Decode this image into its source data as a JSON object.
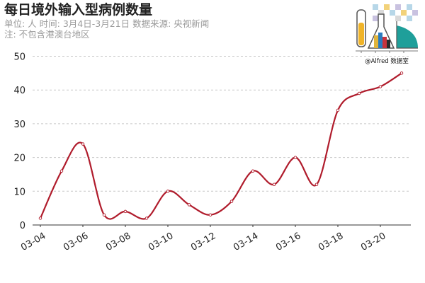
{
  "chart_data": {
    "type": "line",
    "title": "每日境外输入型病例数量",
    "subtitle_lines": [
      "单位: 人  时间: 3月4日-3月21日  数据来源: 央视新闻",
      "注: 不包含港澳台地区"
    ],
    "x": [
      "03-04",
      "03-05",
      "03-06",
      "03-07",
      "03-08",
      "03-09",
      "03-10",
      "03-11",
      "03-12",
      "03-13",
      "03-14",
      "03-15",
      "03-16",
      "03-17",
      "03-18",
      "03-19",
      "03-20",
      "03-21"
    ],
    "x_tick_labels": [
      "03-04",
      "03-06",
      "03-08",
      "03-10",
      "03-12",
      "03-14",
      "03-16",
      "03-18",
      "03-20"
    ],
    "series": [
      {
        "values": [
          2,
          16,
          24,
          3,
          4,
          2,
          10,
          6,
          3,
          7,
          16,
          12,
          20,
          12,
          34,
          39,
          41,
          45
        ]
      }
    ],
    "y_ticks": [
      0,
      10,
      20,
      30,
      40,
      50
    ],
    "ylim": [
      0,
      52
    ],
    "grid": "horizontal dashed",
    "line_color": "#b01c2c",
    "xlabel": "",
    "ylabel": ""
  },
  "watermark": {
    "caption": "@Alfred 数据室"
  }
}
